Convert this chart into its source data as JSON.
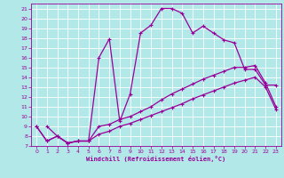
{
  "xlabel": "Windchill (Refroidissement éolien,°C)",
  "bg_color": "#b2e8e8",
  "grid_color": "#ffffff",
  "line_color": "#990099",
  "xlim": [
    -0.5,
    23.5
  ],
  "ylim": [
    7,
    21.5
  ],
  "xticks": [
    0,
    1,
    2,
    3,
    4,
    5,
    6,
    7,
    8,
    9,
    10,
    11,
    12,
    13,
    14,
    15,
    16,
    17,
    18,
    19,
    20,
    21,
    22,
    23
  ],
  "yticks": [
    7,
    8,
    9,
    10,
    11,
    12,
    13,
    14,
    15,
    16,
    17,
    18,
    19,
    20,
    21
  ],
  "line1_x": [
    0,
    1,
    2,
    3,
    4,
    5,
    6,
    7,
    8,
    9,
    10,
    11,
    12,
    13,
    14,
    15,
    16,
    17,
    18,
    19,
    20,
    21,
    22,
    23
  ],
  "line1_y": [
    9.0,
    7.5,
    8.0,
    7.3,
    7.5,
    7.5,
    8.2,
    8.5,
    9.0,
    9.3,
    9.7,
    10.1,
    10.5,
    10.9,
    11.3,
    11.8,
    12.2,
    12.6,
    13.0,
    13.4,
    13.7,
    14.0,
    13.0,
    10.7
  ],
  "line2_x": [
    0,
    1,
    2,
    3,
    4,
    5,
    6,
    7,
    8,
    9,
    10,
    11,
    12,
    13,
    14,
    15,
    16,
    17,
    18,
    19,
    20,
    21,
    22,
    23
  ],
  "line2_y": [
    9.0,
    7.5,
    8.0,
    7.3,
    7.5,
    7.5,
    9.0,
    9.2,
    9.7,
    10.0,
    10.5,
    11.0,
    11.7,
    12.3,
    12.8,
    13.3,
    13.8,
    14.2,
    14.6,
    15.0,
    15.0,
    15.2,
    13.4,
    11.0
  ],
  "line3_x": [
    1,
    2,
    3,
    4,
    5,
    6,
    7,
    8,
    9,
    10,
    11,
    12,
    13,
    14,
    15,
    16,
    17,
    18,
    19,
    20,
    21,
    22,
    23
  ],
  "line3_y": [
    9.0,
    8.0,
    7.3,
    7.5,
    7.5,
    16.0,
    17.9,
    9.5,
    12.3,
    18.5,
    19.3,
    21.0,
    21.0,
    20.5,
    18.5,
    19.2,
    18.5,
    17.8,
    17.5,
    14.8,
    14.8,
    13.2,
    13.2
  ]
}
